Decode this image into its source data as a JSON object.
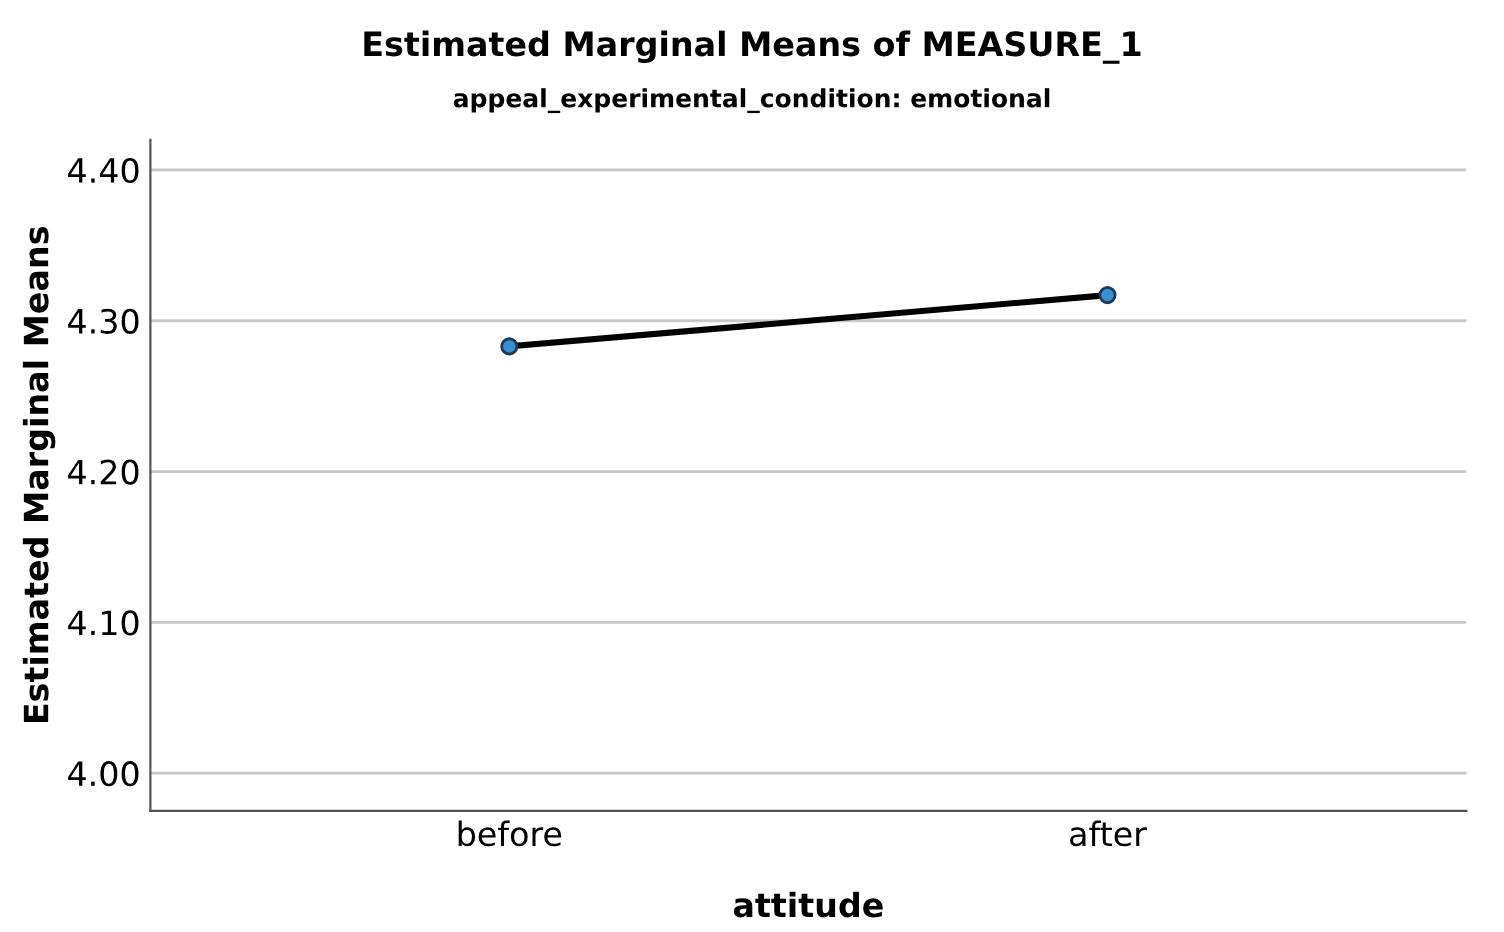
{
  "chart_data": {
    "type": "line",
    "title": "Estimated Marginal Means of MEASURE_1",
    "subtitle": "appeal_experimental_condition: emotional",
    "xlabel": "attitude",
    "ylabel": "Estimated Marginal Means",
    "categories": [
      "before",
      "after"
    ],
    "series": [
      {
        "color": "#3a8fd0",
        "values": [
          4.283,
          4.317
        ]
      }
    ],
    "ylim": [
      3.975,
      4.42
    ],
    "yticks": [
      {
        "value": 4.0,
        "label": "4.00"
      },
      {
        "value": 4.1,
        "label": "4.10"
      },
      {
        "value": 4.2,
        "label": "4.20"
      },
      {
        "value": 4.3,
        "label": "4.30"
      },
      {
        "value": 4.4,
        "label": "4.40"
      }
    ],
    "grid": "y",
    "marker": "circle",
    "line_style": "solid"
  }
}
